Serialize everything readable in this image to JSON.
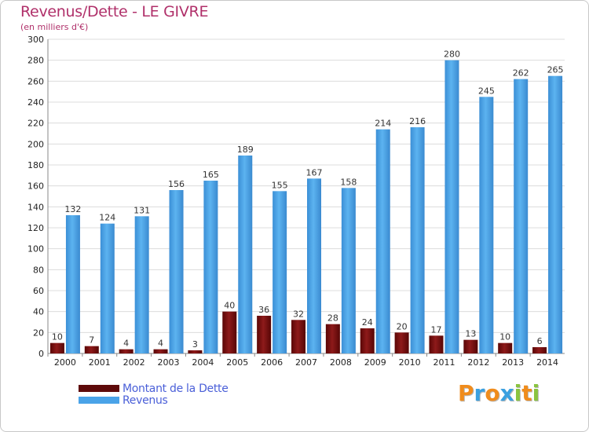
{
  "chart_data": {
    "type": "bar",
    "title": "Revenus/Dette - LE GIVRE",
    "subtitle": "(en milliers d'€)",
    "categories": [
      "2000",
      "2001",
      "2002",
      "2003",
      "2004",
      "2005",
      "2006",
      "2007",
      "2008",
      "2009",
      "2010",
      "2011",
      "2012",
      "2013",
      "2014"
    ],
    "series": [
      {
        "name": "Montant de la Dette",
        "color": "#7a0e0e",
        "values": [
          10,
          7,
          4,
          4,
          3,
          40,
          36,
          32,
          28,
          24,
          20,
          17,
          13,
          10,
          6
        ]
      },
      {
        "name": "Revenus",
        "color": "#4aa3e8",
        "values": [
          132,
          124,
          131,
          156,
          165,
          189,
          155,
          167,
          158,
          214,
          216,
          280,
          245,
          262,
          265
        ]
      }
    ],
    "ylim": [
      0,
      300
    ],
    "yticks": [
      0,
      20,
      40,
      60,
      80,
      100,
      120,
      140,
      160,
      180,
      200,
      220,
      240,
      260,
      280,
      300
    ],
    "grid": true,
    "legend_position": "bottom-left"
  },
  "logo": {
    "letters": [
      "P",
      "r",
      "o",
      "x",
      "i",
      "t",
      "i"
    ],
    "colors": [
      "#f08c1c",
      "#3aa0e0",
      "#f08c1c",
      "#3aa0e0",
      "#8ac43f",
      "#f08c1c",
      "#8ac43f"
    ]
  }
}
